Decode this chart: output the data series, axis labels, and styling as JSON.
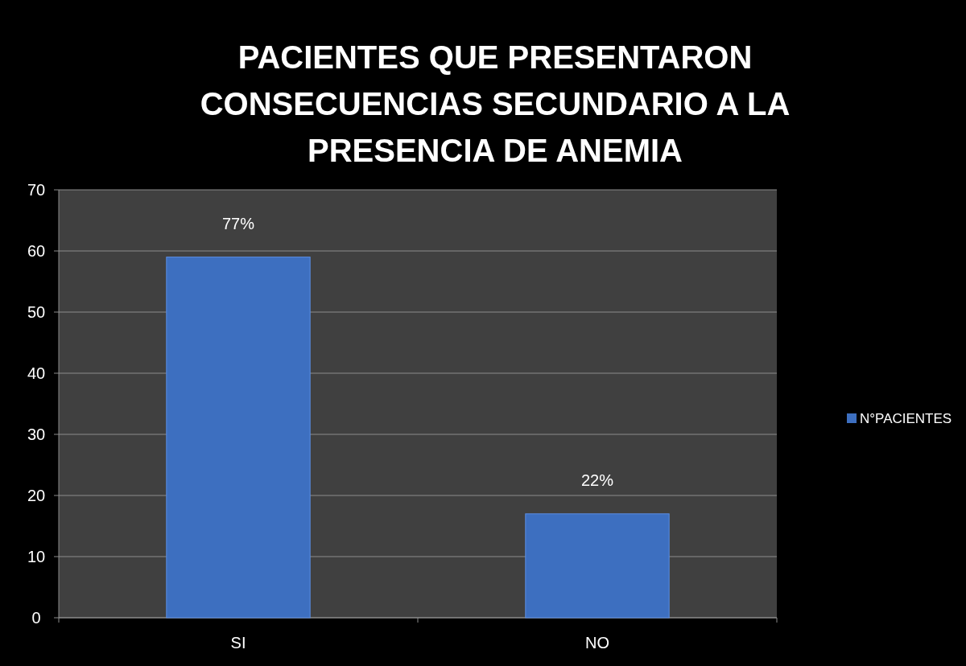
{
  "chart_data": {
    "type": "bar",
    "title": "PACIENTES QUE PRESENTARON CONSECUENCIAS SECUNDARIO A LA PRESENCIA DE ANEMIA",
    "categories": [
      "SI",
      "NO"
    ],
    "series": [
      {
        "name": "N°PACIENTES",
        "color": "#3d6fc0",
        "values": [
          59,
          17
        ]
      }
    ],
    "annotations": [
      {
        "text": "77%",
        "x": "SI",
        "y": 59
      },
      {
        "text": "22%",
        "x": "NO",
        "y": 17
      }
    ],
    "ylim": [
      0,
      70
    ],
    "yticks": [
      0,
      10,
      20,
      30,
      40,
      50,
      60,
      70
    ],
    "grid": "y",
    "legend": "right"
  }
}
